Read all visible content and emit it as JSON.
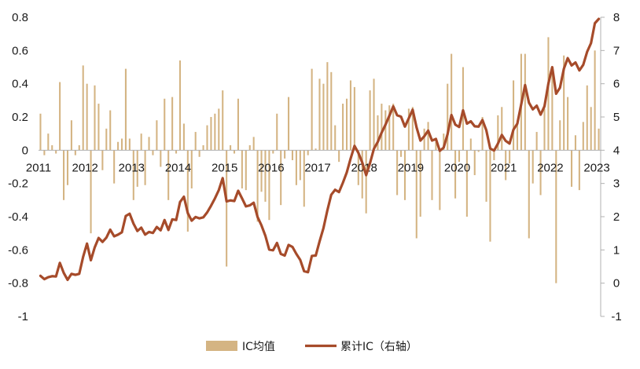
{
  "chart_data": {
    "type": "bar+line",
    "colors": {
      "bar": "#D4B483",
      "line": "#A64B2A",
      "axis": "#b0b0b0"
    },
    "x": {
      "start_year": 2011,
      "end_month": "2023-05",
      "year_labels": [
        "2011",
        "2012",
        "2013",
        "2014",
        "2015",
        "2016",
        "2017",
        "2018",
        "2019",
        "2020",
        "2021",
        "2022",
        "2023"
      ]
    },
    "y_left": {
      "min": -1,
      "max": 0.8,
      "ticks": [
        "0.8",
        "0.6",
        "0.4",
        "0.2",
        "0",
        "-0.2",
        "-0.4",
        "-0.6",
        "-0.8",
        "-1"
      ]
    },
    "y_right": {
      "min": -1,
      "max": 8,
      "ticks": [
        "8",
        "7",
        "6",
        "5",
        "4",
        "3",
        "2",
        "1",
        "0",
        "-1"
      ]
    },
    "legend": {
      "position": "bottom-center",
      "items": [
        "IC均值",
        "累计IC（右轴）"
      ]
    },
    "series": [
      {
        "name": "IC均值",
        "axis": "left",
        "kind": "bar",
        "values": [
          0.22,
          -0.03,
          0.1,
          0.03,
          -0.02,
          0.41,
          -0.3,
          -0.21,
          0.18,
          -0.03,
          0.03,
          0.51,
          0.4,
          -0.5,
          0.39,
          0.28,
          -0.12,
          0.13,
          0.24,
          -0.2,
          0.05,
          0.07,
          0.49,
          0.07,
          -0.3,
          -0.22,
          0.1,
          -0.21,
          0.08,
          -0.03,
          0.18,
          -0.1,
          0.31,
          -0.3,
          0.32,
          -0.02,
          0.54,
          0.16,
          -0.49,
          -0.23,
          0.11,
          -0.04,
          0.03,
          0.15,
          0.2,
          0.22,
          0.25,
          0.36,
          -0.7,
          0.03,
          -0.02,
          0.31,
          -0.23,
          -0.24,
          0.03,
          0.08,
          -0.43,
          -0.25,
          -0.31,
          -0.42,
          -0.02,
          0.22,
          -0.33,
          -0.05,
          0.32,
          -0.06,
          -0.21,
          -0.18,
          -0.34,
          -0.03,
          0.49,
          0.01,
          0.43,
          0.4,
          0.53,
          0.47,
          0.15,
          -0.07,
          0.28,
          0.31,
          0.42,
          0.38,
          -0.21,
          -0.29,
          -0.38,
          0.36,
          0.43,
          0.21,
          0.28,
          0.24,
          0.27,
          0.28,
          -0.27,
          -0.04,
          -0.3,
          0.25,
          0.26,
          -0.53,
          -0.4,
          0.13,
          0.17,
          -0.3,
          0.05,
          -0.36,
          0.1,
          0.4,
          0.58,
          -0.29,
          -0.07,
          0.5,
          -0.4,
          0.07,
          -0.15,
          -0.01,
          0.2,
          -0.31,
          -0.55,
          -0.06,
          0.21,
          0.26,
          -0.18,
          -0.08,
          0.42,
          0.18,
          0.58,
          0.58,
          -0.53,
          -0.2,
          0.11,
          -0.27,
          0.25,
          0.68,
          0.5,
          -0.8,
          0.18,
          0.57,
          0.32,
          -0.22,
          0.09,
          -0.24,
          0.17,
          0.39,
          0.26,
          0.6,
          0.13
        ]
      },
      {
        "name": "累计IC（右轴）",
        "axis": "right",
        "kind": "line",
        "values": [
          0.22,
          0.12,
          0.18,
          0.21,
          0.2,
          0.61,
          0.31,
          0.1,
          0.28,
          0.25,
          0.28,
          0.79,
          1.19,
          0.69,
          1.08,
          1.36,
          1.24,
          1.37,
          1.61,
          1.41,
          1.46,
          1.53,
          2.02,
          2.09,
          1.79,
          1.57,
          1.67,
          1.46,
          1.54,
          1.51,
          1.69,
          1.59,
          1.9,
          1.6,
          1.92,
          1.9,
          2.44,
          2.6,
          2.11,
          1.88,
          1.99,
          1.95,
          1.98,
          2.13,
          2.33,
          2.55,
          2.8,
          3.16,
          2.46,
          2.49,
          2.47,
          2.78,
          2.55,
          2.31,
          2.34,
          2.42,
          1.99,
          1.74,
          1.43,
          1.01,
          0.99,
          1.21,
          0.88,
          0.83,
          1.15,
          1.09,
          0.88,
          0.7,
          0.36,
          0.33,
          0.82,
          0.83,
          1.26,
          1.66,
          2.19,
          2.66,
          2.81,
          2.74,
          3.02,
          3.33,
          3.75,
          4.13,
          3.92,
          3.63,
          3.25,
          3.61,
          4.04,
          4.25,
          4.53,
          4.77,
          5.04,
          5.32,
          5.05,
          5.01,
          4.71,
          4.96,
          5.22,
          4.69,
          4.29,
          4.42,
          4.59,
          4.29,
          4.34,
          3.98,
          4.08,
          4.48,
          5.06,
          4.77,
          4.7,
          5.2,
          4.8,
          4.87,
          4.72,
          4.71,
          4.91,
          4.6,
          4.05,
          3.99,
          4.2,
          4.46,
          4.28,
          4.2,
          4.62,
          4.8,
          5.38,
          5.96,
          5.43,
          5.23,
          5.34,
          5.07,
          5.32,
          6.0,
          6.5,
          5.7,
          5.88,
          6.45,
          6.77,
          6.55,
          6.64,
          6.4,
          6.57,
          6.96,
          7.22,
          7.82,
          7.95
        ]
      }
    ]
  }
}
